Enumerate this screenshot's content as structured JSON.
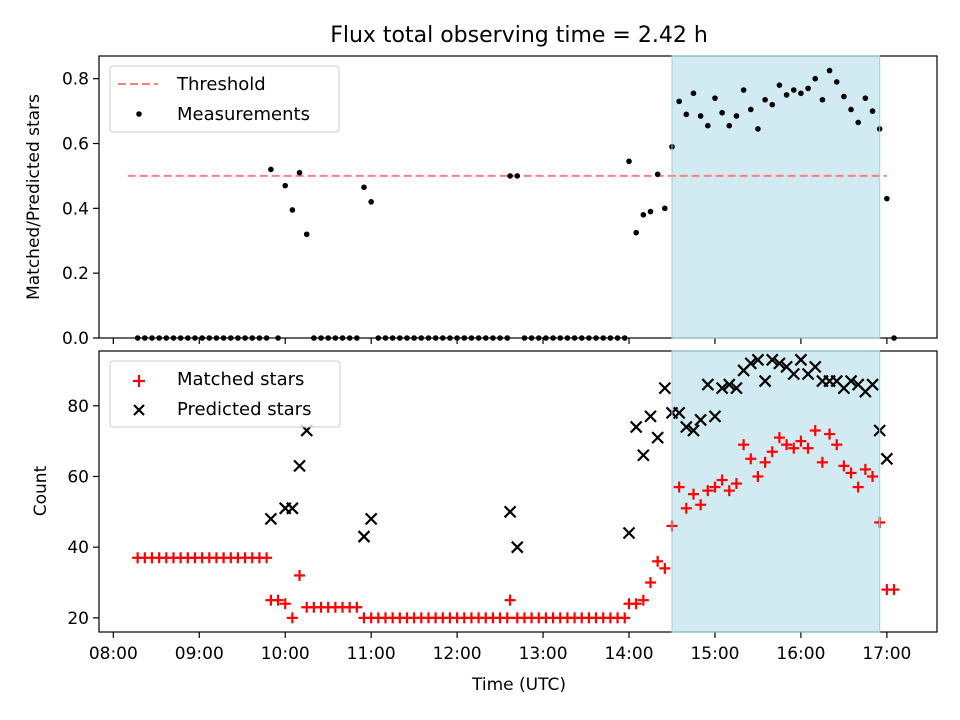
{
  "title": "Flux total observing time = 2.42 h",
  "colors": {
    "threshold": "#ff7f7f",
    "measurement": "#000000",
    "matched": "#ff0000",
    "predicted": "#000000",
    "highlight": "#add8e6"
  },
  "chart_data": [
    {
      "type": "scatter",
      "ylabel": "Matched/Predicted stars",
      "ylim": [
        0,
        0.87
      ],
      "yticks": [
        "0.0",
        "0.2",
        "0.4",
        "0.6",
        "0.8"
      ],
      "grid": false,
      "legend_position": "top-left",
      "highlight_span": [
        "14:30",
        "16:55"
      ],
      "threshold": {
        "name": "Threshold",
        "value": 0.5,
        "x_range": [
          "08:10",
          "17:00"
        ],
        "style": "dashed"
      },
      "series": [
        {
          "name": "Measurements",
          "points": [
            [
              "08:17",
              0
            ],
            [
              "08:22",
              0
            ],
            [
              "08:27",
              0
            ],
            [
              "08:32",
              0
            ],
            [
              "08:37",
              0
            ],
            [
              "08:42",
              0
            ],
            [
              "08:47",
              0
            ],
            [
              "08:52",
              0
            ],
            [
              "08:57",
              0
            ],
            [
              "09:02",
              0
            ],
            [
              "09:07",
              0
            ],
            [
              "09:12",
              0
            ],
            [
              "09:17",
              0
            ],
            [
              "09:22",
              0
            ],
            [
              "09:27",
              0
            ],
            [
              "09:32",
              0
            ],
            [
              "09:37",
              0
            ],
            [
              "09:42",
              0
            ],
            [
              "09:47",
              0
            ],
            [
              "09:50",
              0.52
            ],
            [
              "09:55",
              0
            ],
            [
              "10:00",
              0.47
            ],
            [
              "10:05",
              0.395
            ],
            [
              "10:10",
              0.51
            ],
            [
              "10:15",
              0.32
            ],
            [
              "10:20",
              0
            ],
            [
              "10:25",
              0
            ],
            [
              "10:30",
              0
            ],
            [
              "10:35",
              0
            ],
            [
              "10:40",
              0
            ],
            [
              "10:45",
              0
            ],
            [
              "10:50",
              0
            ],
            [
              "10:55",
              0.465
            ],
            [
              "11:00",
              0.42
            ],
            [
              "11:05",
              0
            ],
            [
              "11:10",
              0
            ],
            [
              "11:15",
              0
            ],
            [
              "11:20",
              0
            ],
            [
              "11:25",
              0
            ],
            [
              "11:30",
              0
            ],
            [
              "11:35",
              0
            ],
            [
              "11:40",
              0
            ],
            [
              "11:45",
              0
            ],
            [
              "11:50",
              0
            ],
            [
              "11:55",
              0
            ],
            [
              "12:00",
              0
            ],
            [
              "12:05",
              0
            ],
            [
              "12:10",
              0
            ],
            [
              "12:15",
              0
            ],
            [
              "12:20",
              0
            ],
            [
              "12:25",
              0
            ],
            [
              "12:30",
              0
            ],
            [
              "12:35",
              0
            ],
            [
              "12:37",
              0.5
            ],
            [
              "12:42",
              0.5
            ],
            [
              "12:47",
              0
            ],
            [
              "12:52",
              0
            ],
            [
              "12:57",
              0
            ],
            [
              "13:02",
              0
            ],
            [
              "13:07",
              0
            ],
            [
              "13:12",
              0
            ],
            [
              "13:17",
              0
            ],
            [
              "13:22",
              0
            ],
            [
              "13:27",
              0
            ],
            [
              "13:32",
              0
            ],
            [
              "13:37",
              0
            ],
            [
              "13:42",
              0
            ],
            [
              "13:47",
              0
            ],
            [
              "13:52",
              0
            ],
            [
              "13:57",
              0
            ],
            [
              "14:00",
              0.545
            ],
            [
              "14:05",
              0.325
            ],
            [
              "14:10",
              0.38
            ],
            [
              "14:15",
              0.39
            ],
            [
              "14:20",
              0.505
            ],
            [
              "14:25",
              0.4
            ],
            [
              "14:30",
              0.59
            ],
            [
              "14:35",
              0.73
            ],
            [
              "14:40",
              0.69
            ],
            [
              "14:45",
              0.755
            ],
            [
              "14:50",
              0.685
            ],
            [
              "14:55",
              0.655
            ],
            [
              "15:00",
              0.74
            ],
            [
              "15:05",
              0.695
            ],
            [
              "15:10",
              0.655
            ],
            [
              "15:15",
              0.685
            ],
            [
              "15:20",
              0.765
            ],
            [
              "15:25",
              0.705
            ],
            [
              "15:30",
              0.645
            ],
            [
              "15:35",
              0.735
            ],
            [
              "15:40",
              0.72
            ],
            [
              "15:45",
              0.78
            ],
            [
              "15:50",
              0.75
            ],
            [
              "15:55",
              0.765
            ],
            [
              "16:00",
              0.755
            ],
            [
              "16:05",
              0.77
            ],
            [
              "16:10",
              0.8
            ],
            [
              "16:15",
              0.735
            ],
            [
              "16:20",
              0.825
            ],
            [
              "16:25",
              0.79
            ],
            [
              "16:30",
              0.745
            ],
            [
              "16:35",
              0.705
            ],
            [
              "16:40",
              0.665
            ],
            [
              "16:45",
              0.74
            ],
            [
              "16:50",
              0.7
            ],
            [
              "16:55",
              0.645
            ],
            [
              "17:00",
              0.43
            ],
            [
              "17:05",
              0
            ]
          ]
        }
      ]
    },
    {
      "type": "scatter",
      "xlabel": "Time (UTC)",
      "ylabel": "Count",
      "ylim": [
        16,
        95.5
      ],
      "yticks": [
        "20",
        "40",
        "60",
        "80"
      ],
      "xticks": [
        "08:00",
        "09:00",
        "10:00",
        "11:00",
        "12:00",
        "13:00",
        "14:00",
        "15:00",
        "16:00",
        "17:00"
      ],
      "xlim": [
        "07:50",
        "17:35"
      ],
      "grid": false,
      "legend_position": "top-left",
      "highlight_span": [
        "14:30",
        "16:55"
      ],
      "series": [
        {
          "name": "Matched stars",
          "points": [
            [
              "08:17",
              37
            ],
            [
              "08:22",
              37
            ],
            [
              "08:27",
              37
            ],
            [
              "08:32",
              37
            ],
            [
              "08:37",
              37
            ],
            [
              "08:42",
              37
            ],
            [
              "08:47",
              37
            ],
            [
              "08:52",
              37
            ],
            [
              "08:57",
              37
            ],
            [
              "09:02",
              37
            ],
            [
              "09:07",
              37
            ],
            [
              "09:12",
              37
            ],
            [
              "09:17",
              37
            ],
            [
              "09:22",
              37
            ],
            [
              "09:27",
              37
            ],
            [
              "09:32",
              37
            ],
            [
              "09:37",
              37
            ],
            [
              "09:42",
              37
            ],
            [
              "09:47",
              37
            ],
            [
              "09:50",
              25
            ],
            [
              "09:55",
              25
            ],
            [
              "10:00",
              24
            ],
            [
              "10:05",
              20
            ],
            [
              "10:10",
              32
            ],
            [
              "10:15",
              23
            ],
            [
              "10:20",
              23
            ],
            [
              "10:25",
              23
            ],
            [
              "10:30",
              23
            ],
            [
              "10:35",
              23
            ],
            [
              "10:40",
              23
            ],
            [
              "10:45",
              23
            ],
            [
              "10:50",
              23
            ],
            [
              "10:55",
              20
            ],
            [
              "11:00",
              20
            ],
            [
              "11:05",
              20
            ],
            [
              "11:10",
              20
            ],
            [
              "11:15",
              20
            ],
            [
              "11:20",
              20
            ],
            [
              "11:25",
              20
            ],
            [
              "11:30",
              20
            ],
            [
              "11:35",
              20
            ],
            [
              "11:40",
              20
            ],
            [
              "11:45",
              20
            ],
            [
              "11:50",
              20
            ],
            [
              "11:55",
              20
            ],
            [
              "12:00",
              20
            ],
            [
              "12:05",
              20
            ],
            [
              "12:10",
              20
            ],
            [
              "12:15",
              20
            ],
            [
              "12:20",
              20
            ],
            [
              "12:25",
              20
            ],
            [
              "12:30",
              20
            ],
            [
              "12:35",
              20
            ],
            [
              "12:37",
              25
            ],
            [
              "12:42",
              20
            ],
            [
              "12:47",
              20
            ],
            [
              "12:52",
              20
            ],
            [
              "12:57",
              20
            ],
            [
              "13:02",
              20
            ],
            [
              "13:07",
              20
            ],
            [
              "13:12",
              20
            ],
            [
              "13:17",
              20
            ],
            [
              "13:22",
              20
            ],
            [
              "13:27",
              20
            ],
            [
              "13:32",
              20
            ],
            [
              "13:37",
              20
            ],
            [
              "13:42",
              20
            ],
            [
              "13:47",
              20
            ],
            [
              "13:52",
              20
            ],
            [
              "13:57",
              20
            ],
            [
              "14:00",
              24
            ],
            [
              "14:05",
              24
            ],
            [
              "14:10",
              25
            ],
            [
              "14:15",
              30
            ],
            [
              "14:20",
              36
            ],
            [
              "14:25",
              34
            ],
            [
              "14:30",
              46
            ],
            [
              "14:35",
              57
            ],
            [
              "14:40",
              51
            ],
            [
              "14:45",
              55
            ],
            [
              "14:50",
              52
            ],
            [
              "14:55",
              56
            ],
            [
              "15:00",
              57
            ],
            [
              "15:05",
              59
            ],
            [
              "15:10",
              56
            ],
            [
              "15:15",
              58
            ],
            [
              "15:20",
              69
            ],
            [
              "15:25",
              65
            ],
            [
              "15:30",
              60
            ],
            [
              "15:35",
              64
            ],
            [
              "15:40",
              67
            ],
            [
              "15:45",
              71
            ],
            [
              "15:50",
              69
            ],
            [
              "15:55",
              68
            ],
            [
              "16:00",
              70
            ],
            [
              "16:05",
              68
            ],
            [
              "16:10",
              73
            ],
            [
              "16:15",
              64
            ],
            [
              "16:20",
              72
            ],
            [
              "16:25",
              69
            ],
            [
              "16:30",
              63
            ],
            [
              "16:35",
              61
            ],
            [
              "16:40",
              57
            ],
            [
              "16:45",
              62
            ],
            [
              "16:50",
              60
            ],
            [
              "16:55",
              47
            ],
            [
              "17:00",
              28
            ],
            [
              "17:05",
              28
            ]
          ]
        },
        {
          "name": "Predicted stars",
          "points": [
            [
              "09:50",
              48
            ],
            [
              "10:00",
              51
            ],
            [
              "10:05",
              51
            ],
            [
              "10:10",
              63
            ],
            [
              "10:15",
              73
            ],
            [
              "10:55",
              43
            ],
            [
              "11:00",
              48
            ],
            [
              "12:37",
              50
            ],
            [
              "12:42",
              40
            ],
            [
              "14:00",
              44
            ],
            [
              "14:05",
              74
            ],
            [
              "14:10",
              66
            ],
            [
              "14:15",
              77
            ],
            [
              "14:20",
              71
            ],
            [
              "14:25",
              85
            ],
            [
              "14:30",
              78
            ],
            [
              "14:35",
              78
            ],
            [
              "14:40",
              74
            ],
            [
              "14:45",
              73
            ],
            [
              "14:50",
              76
            ],
            [
              "14:55",
              86
            ],
            [
              "15:00",
              77
            ],
            [
              "15:05",
              85
            ],
            [
              "15:10",
              86
            ],
            [
              "15:15",
              85
            ],
            [
              "15:20",
              90
            ],
            [
              "15:25",
              92
            ],
            [
              "15:30",
              93
            ],
            [
              "15:35",
              87
            ],
            [
              "15:40",
              93
            ],
            [
              "15:45",
              92
            ],
            [
              "15:50",
              91
            ],
            [
              "15:55",
              89
            ],
            [
              "16:00",
              93
            ],
            [
              "16:05",
              89
            ],
            [
              "16:10",
              91
            ],
            [
              "16:15",
              87
            ],
            [
              "16:20",
              87
            ],
            [
              "16:25",
              87
            ],
            [
              "16:30",
              85
            ],
            [
              "16:35",
              87
            ],
            [
              "16:40",
              86
            ],
            [
              "16:45",
              84
            ],
            [
              "16:50",
              86
            ],
            [
              "16:55",
              73
            ],
            [
              "17:00",
              65
            ]
          ]
        }
      ]
    }
  ]
}
